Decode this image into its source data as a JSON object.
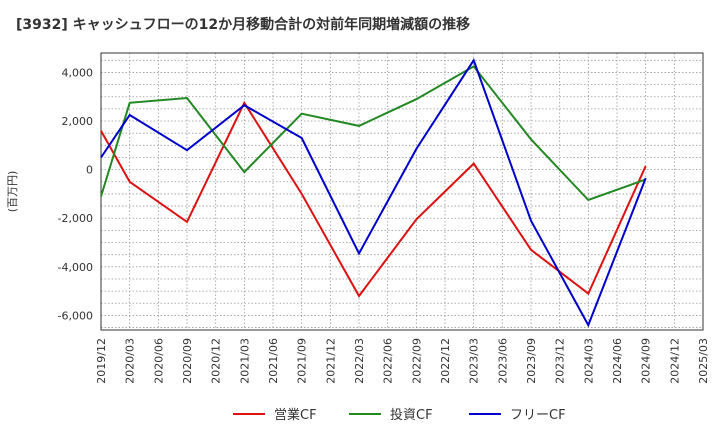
{
  "chart_data": {
    "type": "line",
    "title": "[3932]  キャッシュフローの12か月移動合計の対前年同期増減額の推移",
    "ylabel": "(百万円)",
    "xlabel": "",
    "categories": [
      "2019/12",
      "2020/03",
      "2020/06",
      "2020/09",
      "2020/12",
      "2021/03",
      "2021/06",
      "2021/09",
      "2021/12",
      "2022/03",
      "2022/06",
      "2022/09",
      "2022/12",
      "2023/03",
      "2023/06",
      "2023/09",
      "2023/12",
      "2024/03",
      "2024/06",
      "2024/09",
      "2024/12",
      "2025/03"
    ],
    "ylim": [
      -6600,
      4800
    ],
    "yticks": [
      4000,
      2000,
      0,
      -2000,
      -4000,
      -6000
    ],
    "ytick_labels": [
      "4,000",
      "2,000",
      "0",
      "-2,000",
      "-4,000",
      "-6,000"
    ],
    "grid": true,
    "legend_position": "bottom",
    "series": [
      {
        "name": "営業CF",
        "color": "#dd1111",
        "values": [
          1600,
          -500,
          null,
          -2150,
          null,
          2750,
          null,
          -1000,
          null,
          -5200,
          null,
          -2050,
          null,
          250,
          null,
          -3300,
          null,
          -5100,
          null,
          150,
          null,
          null
        ]
      },
      {
        "name": "投資CF",
        "color": "#228822",
        "values": [
          -1100,
          2750,
          null,
          2950,
          null,
          -100,
          null,
          2300,
          null,
          1800,
          null,
          2900,
          null,
          4250,
          null,
          1250,
          null,
          -1250,
          null,
          -400,
          null,
          null
        ]
      },
      {
        "name": "フリーCF",
        "color": "#0000cc",
        "values": [
          500,
          2250,
          null,
          800,
          null,
          2650,
          null,
          1300,
          null,
          -3450,
          null,
          850,
          null,
          4500,
          null,
          -2100,
          null,
          -6400,
          null,
          -350,
          null,
          null
        ]
      }
    ]
  }
}
